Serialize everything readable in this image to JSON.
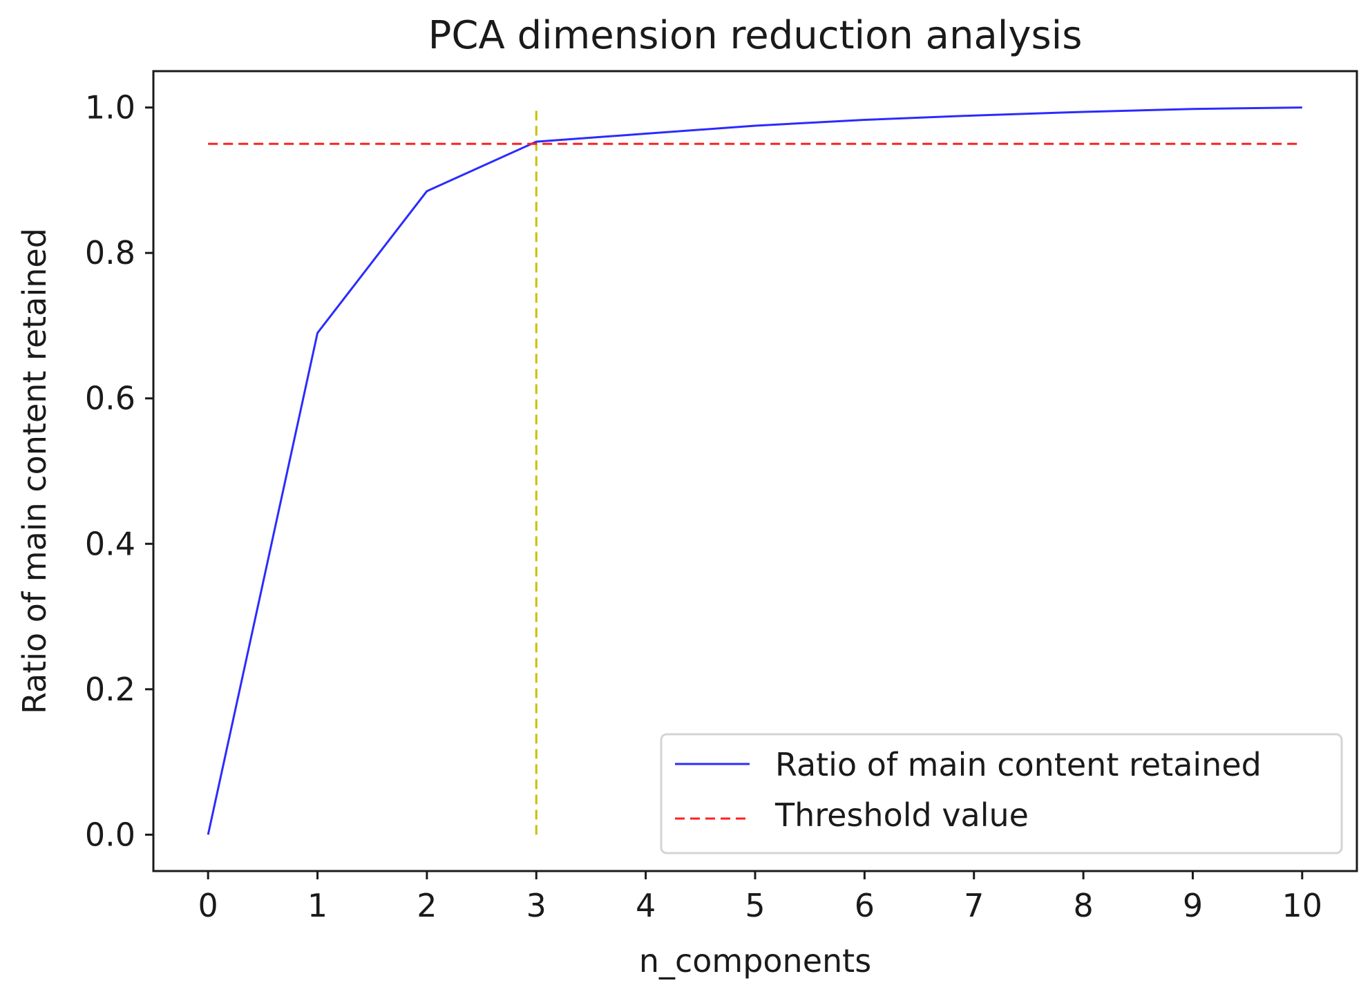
{
  "chart_data": {
    "type": "line",
    "title": "PCA dimension reduction analysis",
    "xlabel": "n_components",
    "ylabel": "Ratio of main content retained",
    "xlim": [
      -0.5,
      10.5
    ],
    "ylim": [
      -0.05,
      1.05
    ],
    "x_ticks": [
      0,
      1,
      2,
      3,
      4,
      5,
      6,
      7,
      8,
      9,
      10
    ],
    "x_tick_labels": [
      "0",
      "1",
      "2",
      "3",
      "4",
      "5",
      "6",
      "7",
      "8",
      "9",
      "10"
    ],
    "y_ticks": [
      0.0,
      0.2,
      0.4,
      0.6,
      0.8,
      1.0
    ],
    "y_tick_labels": [
      "0.0",
      "0.2",
      "0.4",
      "0.6",
      "0.8",
      "1.0"
    ],
    "grid": false,
    "legend_position": "bottom-right",
    "series": [
      {
        "name": "Ratio of main content retained",
        "style": "solid",
        "color": "#2b2bff",
        "x": [
          0,
          1,
          2,
          3,
          4,
          5,
          6,
          7,
          8,
          9,
          10
        ],
        "y": [
          0.0,
          0.69,
          0.885,
          0.953,
          0.964,
          0.975,
          0.983,
          0.989,
          0.994,
          0.998,
          1.0
        ]
      },
      {
        "name": "Threshold value",
        "style": "dashed",
        "color": "#ff2020",
        "x": [
          0,
          10
        ],
        "y": [
          0.95,
          0.95
        ]
      }
    ],
    "vline": {
      "x": 3,
      "y_from": 0.0,
      "y_to": 1.0,
      "style": "dashed",
      "color": "#c8c000"
    }
  }
}
